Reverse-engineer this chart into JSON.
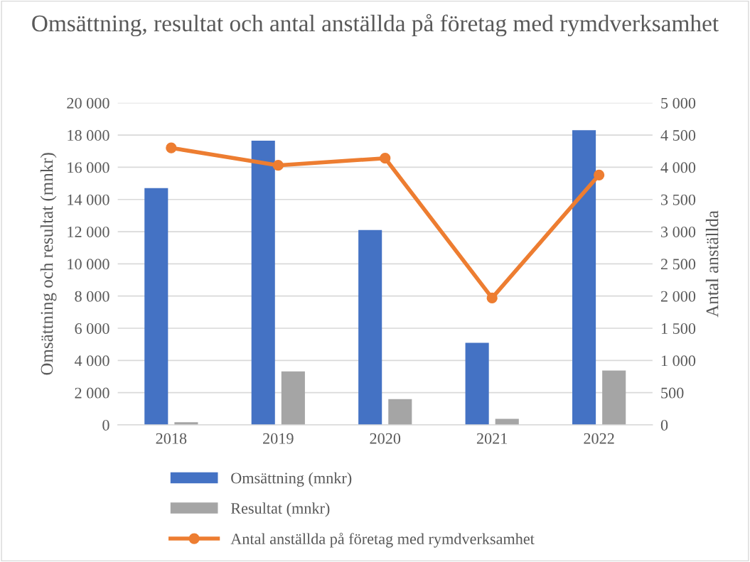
{
  "chart_data": {
    "type": "bar",
    "title": "Omsättning, resultat och antal anställda på företag med rymdverksamhet",
    "ylabel": "Omsättning och resultat (mnkr)",
    "y2label": "Antal anställda",
    "categories": [
      "2018",
      "2019",
      "2020",
      "2021",
      "2022"
    ],
    "series": [
      {
        "name": "Omsättning (mnkr)",
        "color": "#4472c4",
        "values": [
          14700,
          17650,
          12100,
          5100,
          18300
        ]
      },
      {
        "name": "Resultat (mnkr)",
        "color": "#a5a5a5",
        "values": [
          160,
          3320,
          1600,
          370,
          3380
        ]
      },
      {
        "name": "Antal anställda på företag med rymdverksamhet",
        "type": "line",
        "axis": "y2",
        "color": "#ed7d31",
        "marker": "circle",
        "values": [
          4300,
          4030,
          4140,
          1970,
          3880
        ]
      }
    ],
    "ylim": [
      0,
      20000
    ],
    "yticks": [
      0,
      {
        "value": 2000,
        "label": "2 000"
      },
      {
        "value": 4000,
        "label": "4 000"
      },
      {
        "value": 6000,
        "label": "6 000"
      },
      {
        "value": 8000,
        "label": "8 000"
      },
      {
        "value": 10000,
        "label": "10 000"
      },
      {
        "value": 12000,
        "label": "12 000"
      },
      {
        "value": 14000,
        "label": "14 000"
      },
      {
        "value": 16000,
        "label": "16 000"
      },
      {
        "value": 18000,
        "label": "18 000"
      },
      {
        "value": 20000,
        "label": "20 000"
      }
    ],
    "y2lim": [
      0,
      5000
    ],
    "y2ticks": [
      0,
      500,
      {
        "value": 1000,
        "label": "1 000"
      },
      {
        "value": 1500,
        "label": "1 500"
      },
      {
        "value": 2000,
        "label": "2 000"
      },
      {
        "value": 2500,
        "label": "2 500"
      },
      {
        "value": 3000,
        "label": "3 000"
      },
      {
        "value": 3500,
        "label": "3 500"
      },
      {
        "value": 4000,
        "label": "4 000"
      },
      {
        "value": 4500,
        "label": "4 500"
      },
      {
        "value": 5000,
        "label": "5 000"
      }
    ],
    "grid": "y",
    "legend": "bottom"
  }
}
